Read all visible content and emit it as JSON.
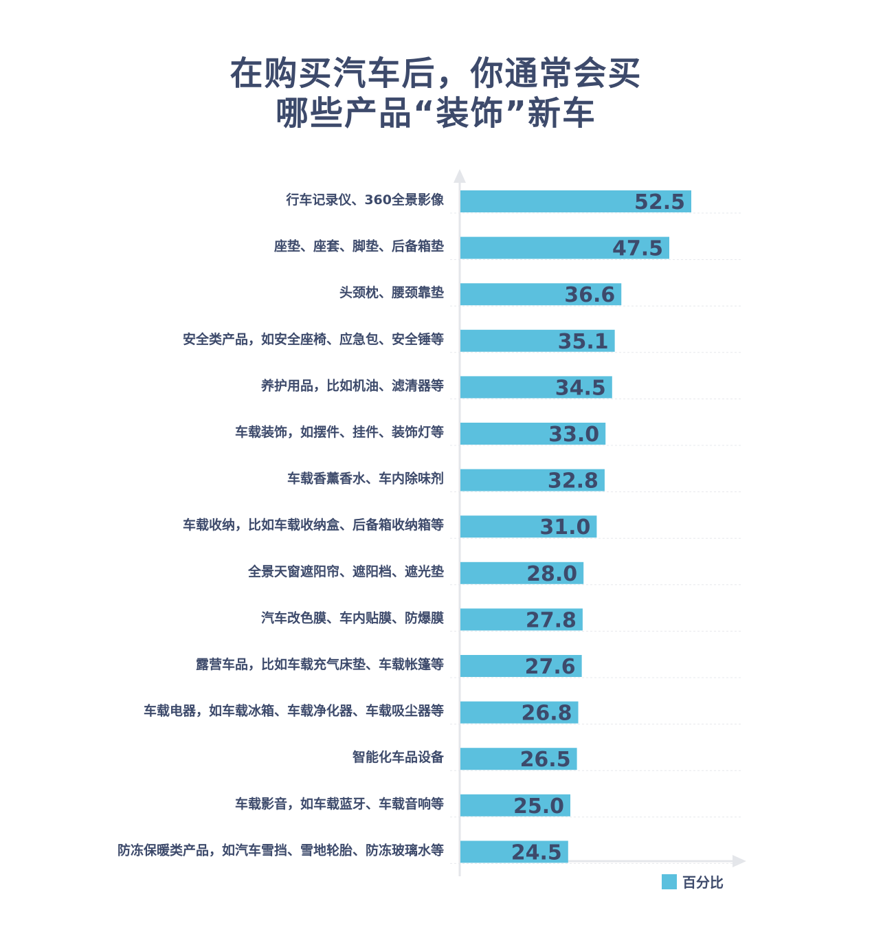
{
  "chart_data": {
    "type": "bar",
    "orientation": "horizontal",
    "title": [
      "在购买汽车后，你通常会买",
      "哪些产品“装饰”新车"
    ],
    "categories": [
      "行车记录仪、360全景影像",
      "座垫、座套、脚垫、后备箱垫",
      "头颈枕、腰颈靠垫",
      "安全类产品，如安全座椅、应急包、安全锤等",
      "养护用品，比如机油、滤清器等",
      "车载装饰，如摆件、挂件、装饰灯等",
      "车载香薰香水、车内除味剂",
      "车载收纳，比如车载收纳盒、后备箱收纳箱等",
      "全景天窗遮阳帘、遮阳档、遮光垫",
      "汽车改色膜、车内贴膜、防爆膜",
      "露营车品，比如车载充气床垫、车载帐篷等",
      "车载电器，如车载冰箱、车载净化器、车载吸尘器等",
      "智能化车品设备",
      "车载影音，如车载蓝牙、车载音响等",
      "防冻保暖类产品，如汽车雪挡、雪地轮胎、防冻玻璃水等"
    ],
    "series": [
      {
        "name": "百分比",
        "values": [
          52.5,
          47.5,
          36.6,
          35.1,
          34.5,
          33.0,
          32.8,
          31.0,
          28.0,
          27.8,
          27.6,
          26.8,
          26.5,
          25.0,
          24.5
        ],
        "value_labels": [
          "52.5",
          "47.5",
          "36.6",
          "35.1",
          "34.5",
          "33.0",
          "32.8",
          "31.0",
          "28.0",
          "27.8",
          "27.6",
          "26.8",
          "26.5",
          "25.0",
          "24.5"
        ]
      }
    ],
    "legend": {
      "position": "bottom-right",
      "label": "百分比"
    },
    "grid": true,
    "colors": {
      "bar": "#5bc0de",
      "text": "#3d4a6b",
      "axis": "#e4e6ea",
      "grid": "#e6e8ec"
    }
  }
}
